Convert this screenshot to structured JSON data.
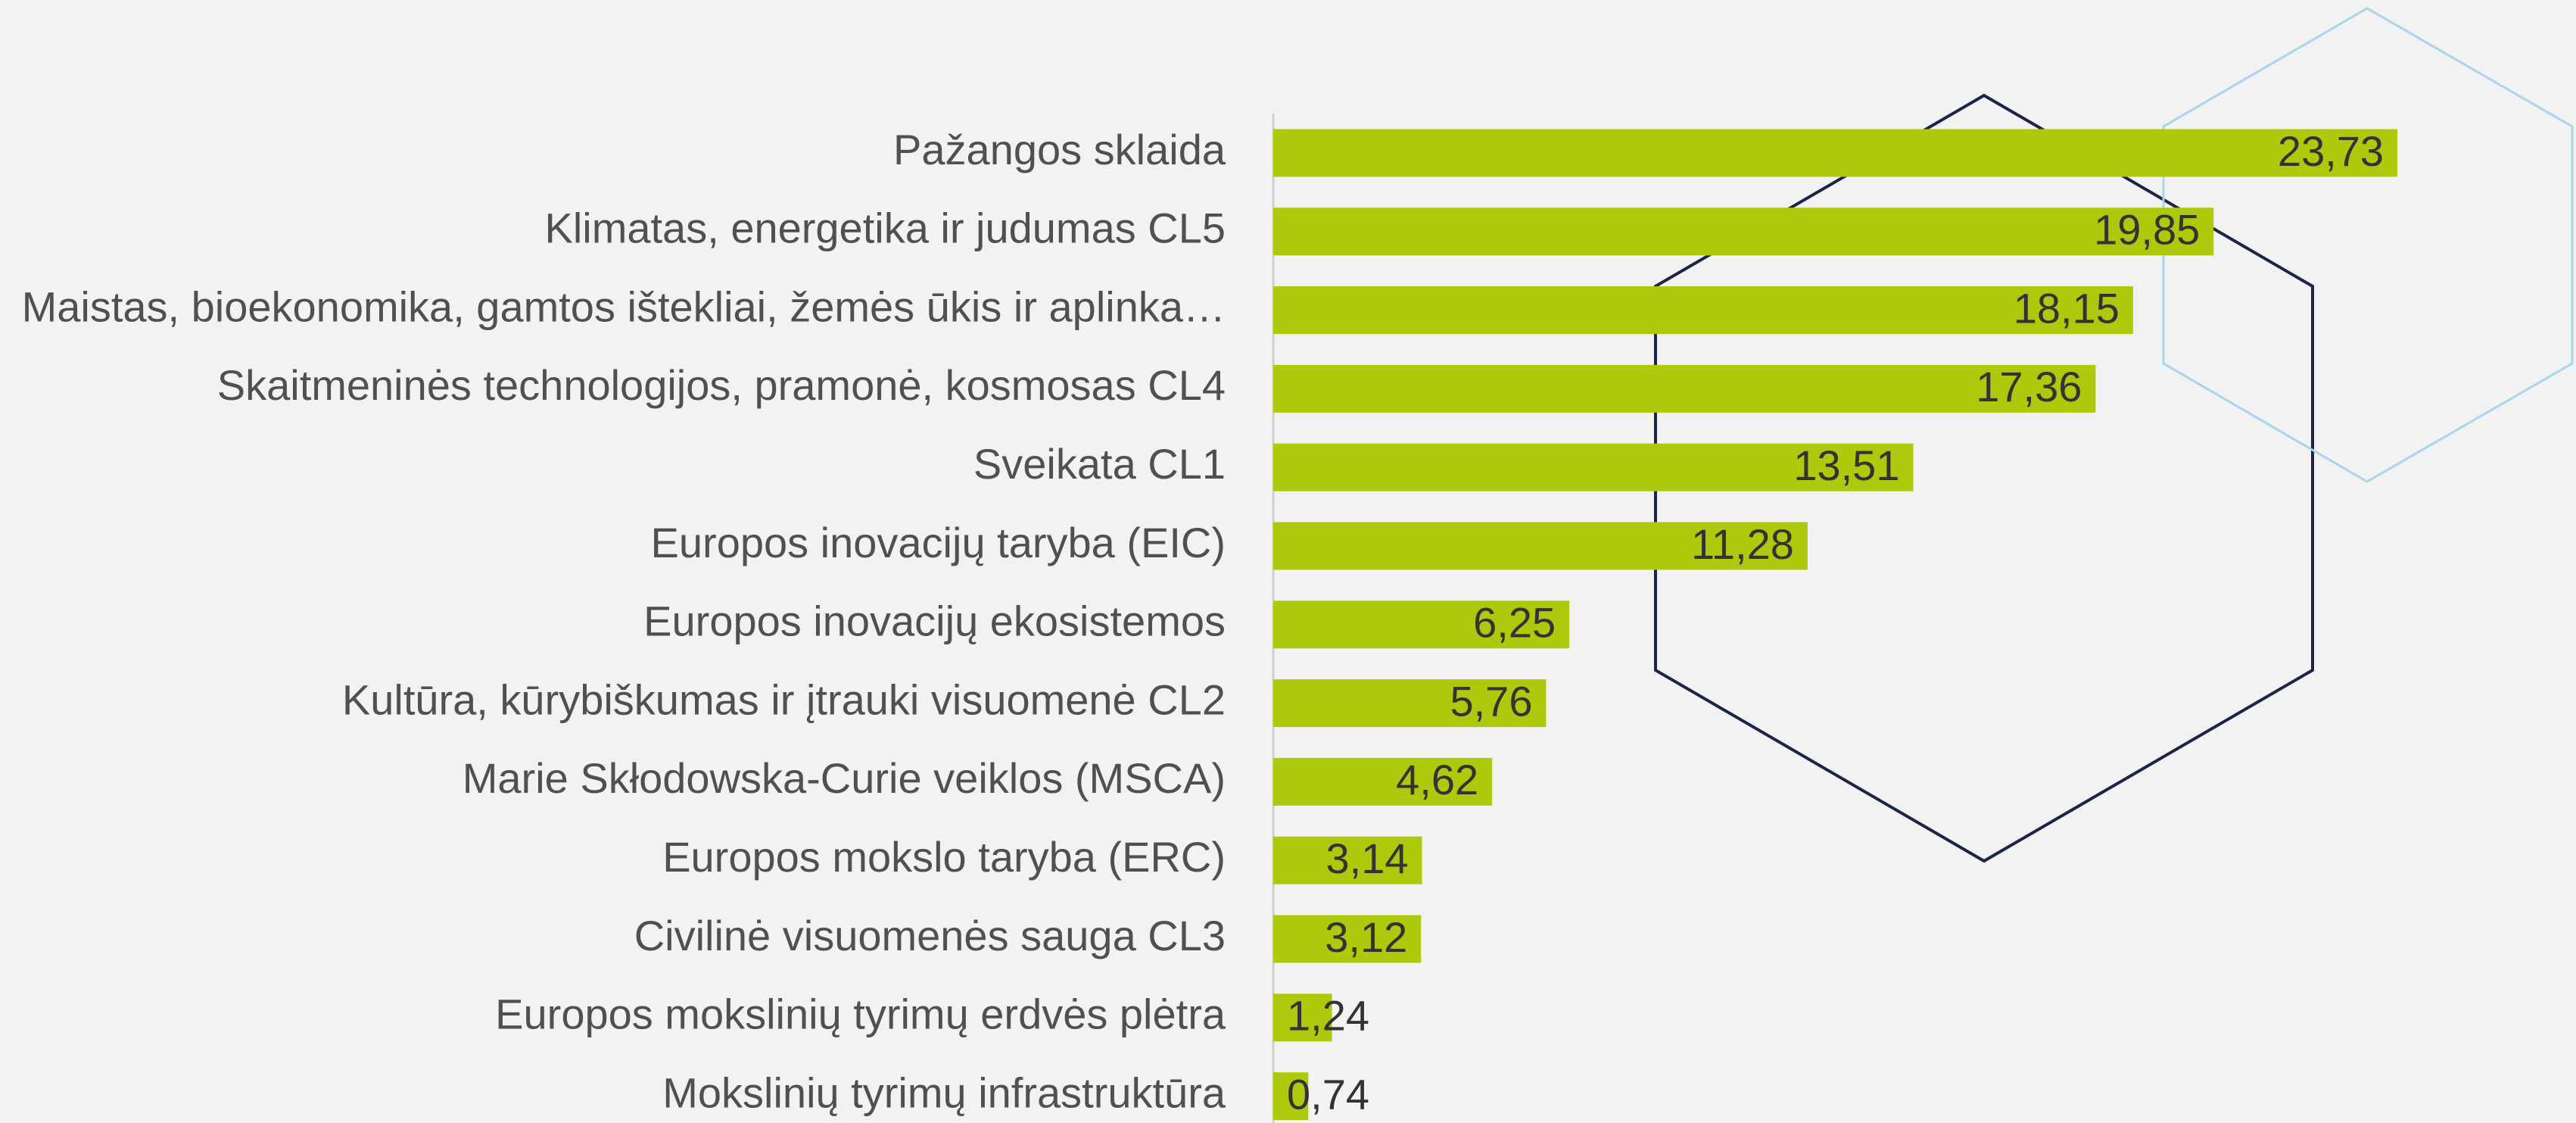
{
  "chart_data": {
    "type": "hbar",
    "categories": [
      "Pažangos sklaida",
      "Klimatas, energetika ir judumas CL5",
      "Maistas, bioekonomika, gamtos ištekliai, žemės ūkis ir aplinka…",
      "Skaitmeninės technologijos, pramonė, kosmosas CL4",
      "Sveikata CL1",
      "Europos inovacijų taryba (EIC)",
      "Europos inovacijų ekosistemos",
      "Kultūra, kūrybiškumas ir įtrauki visuomenė CL2",
      "Marie Skłodowska-Curie veiklos (MSCA)",
      "Europos mokslo taryba (ERC)",
      "Civilinė visuomenės sauga CL3",
      "Europos mokslinių tyrimų erdvės plėtra",
      "Mokslinių tyrimų infrastruktūra"
    ],
    "values": [
      23.73,
      19.85,
      18.15,
      17.36,
      13.51,
      11.28,
      6.25,
      5.76,
      4.62,
      3.14,
      3.12,
      1.24,
      0.74
    ],
    "value_labels": [
      "23,73",
      "19,85",
      "18,15",
      "17,36",
      "13,51",
      "11,28",
      "6,25",
      "5,76",
      "4,62",
      "3,14",
      "3,12",
      "1,24",
      "0,74"
    ],
    "color": "#aec90b",
    "xlim": [
      0,
      27.5
    ]
  }
}
